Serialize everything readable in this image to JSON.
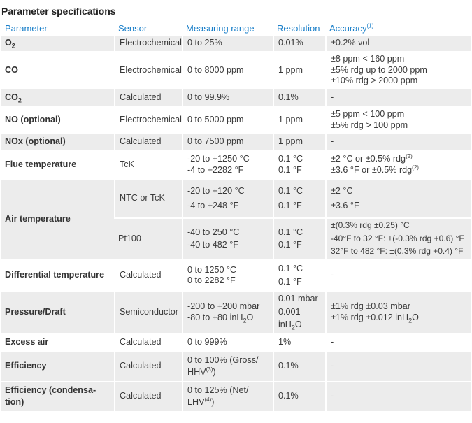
{
  "title": "Parameter specifications",
  "headers": {
    "parameter": "Parameter",
    "sensor": "Sensor",
    "range": "Measuring range",
    "resolution": "Resolution",
    "accuracy": "Accuracy",
    "accuracy_note": "(1)"
  },
  "rows": {
    "o2": {
      "param": "O",
      "param_sub": "2",
      "sensor": "Electrochemical",
      "range": "0 to 25%",
      "res": "0.01%",
      "acc": "±0.2% vol"
    },
    "co": {
      "param": "CO",
      "sensor": "Electrochemical",
      "range": "0 to 8000 ppm",
      "res": "1 ppm",
      "acc1": "±8 ppm < 160 ppm",
      "acc2": "±5% rdg up to 2000 ppm",
      "acc3": "±10% rdg > 2000 ppm"
    },
    "co2": {
      "param": "CO",
      "param_sub": "2",
      "sensor": "Calculated",
      "range": "0 to 99.9%",
      "res": "0.1%",
      "acc": "-"
    },
    "no": {
      "param": "NO (optional)",
      "sensor": "Electrochemical",
      "range": "0 to 5000 ppm",
      "res": "1 ppm",
      "acc1": "±5 ppm < 100 ppm",
      "acc2": "±5% rdg > 100 ppm"
    },
    "nox": {
      "param": "NOx (optional)",
      "sensor": "Calculated",
      "range": "0 to 7500 ppm",
      "res": "1 ppm",
      "acc": "-"
    },
    "flue": {
      "param": "Flue temperature",
      "sensor": "TcK",
      "range1": "-20 to +1250 °C",
      "range2": "-4 to +2282 °F",
      "res1": "0.1 °C",
      "res2": "0.1 °F",
      "acc1": "±2 °C or ±0.5% rdg",
      "acc1_note": "(2)",
      "acc2": "±3.6 °F or ±0.5% rdg",
      "acc2_note": "(2)"
    },
    "air": {
      "param": "Air temperature",
      "ntc": {
        "sensor": "NTC or TcK",
        "range1": "-20 to +120 °C",
        "range2": "-4 to +248 °F",
        "res1": "0.1 °C",
        "res2": "0.1 °F",
        "acc1": "±2 °C",
        "acc2": "±3.6 °F"
      },
      "pt100": {
        "sensor": "Pt100",
        "range1": "-40 to 250 °C",
        "range2": "-40 to 482 °F",
        "res1": "0.1 °C",
        "res2": "0.1 °F",
        "acc1": "±(0.3% rdg ±0.25) °C",
        "acc2": "-40°F to 32 °F: ±(-0.3% rdg +0.6) °F",
        "acc3": "32°F to 482 °F: ±(0.3% rdg +0.4) °F"
      }
    },
    "diff": {
      "param": "Differential temperature",
      "sensor": "Calculated",
      "range1": "0 to 1250 °C",
      "range2": "0 to 2282 °F",
      "res1": "0.1 °C",
      "res2": "0.1 °F",
      "acc": "-"
    },
    "pressure": {
      "param": "Pressure/Draft",
      "sensor": "Semiconductor",
      "range1": "-200 to +200 mbar",
      "range2_pre": "-80 to +80 inH",
      "range2_sub": "2",
      "range2_post": "O",
      "res1": "0.01 mbar",
      "res2": "0.001",
      "res3_pre": "inH",
      "res3_sub": "2",
      "res3_post": "O",
      "acc1": "±1% rdg ±0.03 mbar",
      "acc2_pre": "±1% rdg ±0.012 inH",
      "acc2_sub": "2",
      "acc2_post": "O"
    },
    "excess": {
      "param": "Excess air",
      "sensor": "Calculated",
      "range": "0 to 999%",
      "res": "1%",
      "acc": "-"
    },
    "eff": {
      "param": "Efficiency",
      "sensor": "Calculated",
      "range1": "0 to 100% (Gross/",
      "range2": "HHV",
      "range2_note": "(3)",
      "range2_post": ")",
      "res": "0.1%",
      "acc": "-"
    },
    "effc": {
      "param1": "Efficiency (condensa-",
      "param2": "tion)",
      "sensor": "Calculated",
      "range1": "0 to 125% (Net/",
      "range2": "LHV",
      "range2_note": "(4)",
      "range2_post": ")",
      "res": "0.1%",
      "acc": "-"
    }
  }
}
